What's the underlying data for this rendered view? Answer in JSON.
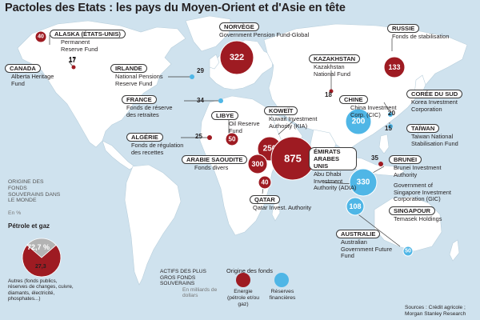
{
  "title": "Pactoles des Etats : les pays du Moyen-Orient et d'Asie en tête",
  "colors": {
    "energy": "#9e1b22",
    "reserves": "#4fb6e6",
    "land": "#ffffff",
    "sea": "#cfe2ee",
    "other_share": "#b3b3b3"
  },
  "funds": [
    {
      "country": "ALASKA (ÉTATS-UNIS)",
      "fund": "Permanent Reserve Fund",
      "value": "40",
      "origin": "energy"
    },
    {
      "country": "CANADA",
      "fund": "Alberta Heritage Fund",
      "value": "17",
      "origin": "energy"
    },
    {
      "country": "NORVÈGE",
      "fund": "Government Pension Fund-Global",
      "value": "322",
      "origin": "energy"
    },
    {
      "country": "IRLANDE",
      "fund": "National Pensions Reserve Fund",
      "value": "29",
      "origin": "reserves"
    },
    {
      "country": "FRANCE",
      "fund": "Fonds de réserve des retraites",
      "value": "34",
      "origin": "reserves"
    },
    {
      "country": "LIBYE",
      "fund": "Oil Reserve Fund",
      "value": "50",
      "origin": "energy"
    },
    {
      "country": "ALGÉRIE",
      "fund": "Fonds de régulation des recettes",
      "value": "25",
      "origin": "energy"
    },
    {
      "country": "KOWEÏT",
      "fund": "Kuwait Investment Authority (KIA)",
      "value": "250",
      "origin": "energy"
    },
    {
      "country": "ARABIE SAOUDITE",
      "fund": "Fonds divers",
      "value": "300",
      "origin": "energy"
    },
    {
      "country": "QATAR",
      "fund": "Qatar Invest. Authority",
      "value": "40",
      "origin": "energy"
    },
    {
      "country": "ÉMIRATS ARABES UNIS",
      "fund": "Abu Dhabi Investment Authority (ADIA)",
      "value": "875",
      "origin": "energy"
    },
    {
      "country": "KAZAKHSTAN",
      "fund": "Kazakhstan National Fund",
      "value": "18",
      "origin": "energy"
    },
    {
      "country": "RUSSIE",
      "fund": "Fonds de stabilisation",
      "value": "133",
      "origin": "energy"
    },
    {
      "country": "CHINE",
      "fund": "China Investment Corp. (CIC)",
      "value": "200",
      "origin": "reserves"
    },
    {
      "country": "CORÉE DU SUD",
      "fund": "Korea Investment Corporation",
      "value": "20",
      "origin": "reserves"
    },
    {
      "country": "TAÏWAN",
      "fund": "Taiwan National Stabilisation Fund",
      "value": "15",
      "origin": "reserves"
    },
    {
      "country": "BRUNEI",
      "fund": "Brunei Investment Authority",
      "value": "35",
      "origin": "energy"
    },
    {
      "country": "",
      "fund": "Government of Singapore Investment Corporation (GIC)",
      "value": "330",
      "origin": "reserves"
    },
    {
      "country": "SINGAPOUR",
      "fund": "Temasek Holdings",
      "value": "108",
      "origin": "reserves"
    },
    {
      "country": "AUSTRALIE",
      "fund": "Australian Government Future Fund",
      "value": "50",
      "origin": "reserves"
    }
  ],
  "legend_origin": {
    "title": "ORIGINE DES FONDS SOUVERAINS DANS LE MONDE",
    "unit": "En %",
    "petrole_label": "Pétrole et gaz",
    "petrole_pct": 72.7,
    "petrole_pct_text": "72,7 %",
    "autres_pct": 27.3,
    "autres_pct_text": "27,3",
    "autres_label": "Autres (fonds publics, réserves de changes, cuivre, diamants, électricité, phosphates...)"
  },
  "legend_size": {
    "title": "ACTIFS DES PLUS GROS FONDS SOUVERAINS",
    "unit": "En milliards de dollars",
    "origin_title": "Origine des fonds",
    "energy_label": "Energie (pétrole et/ou gaz)",
    "reserves_label": "Réserves financières"
  },
  "source": "Sources : Crédit agricole ; Morgan Stanley Research"
}
